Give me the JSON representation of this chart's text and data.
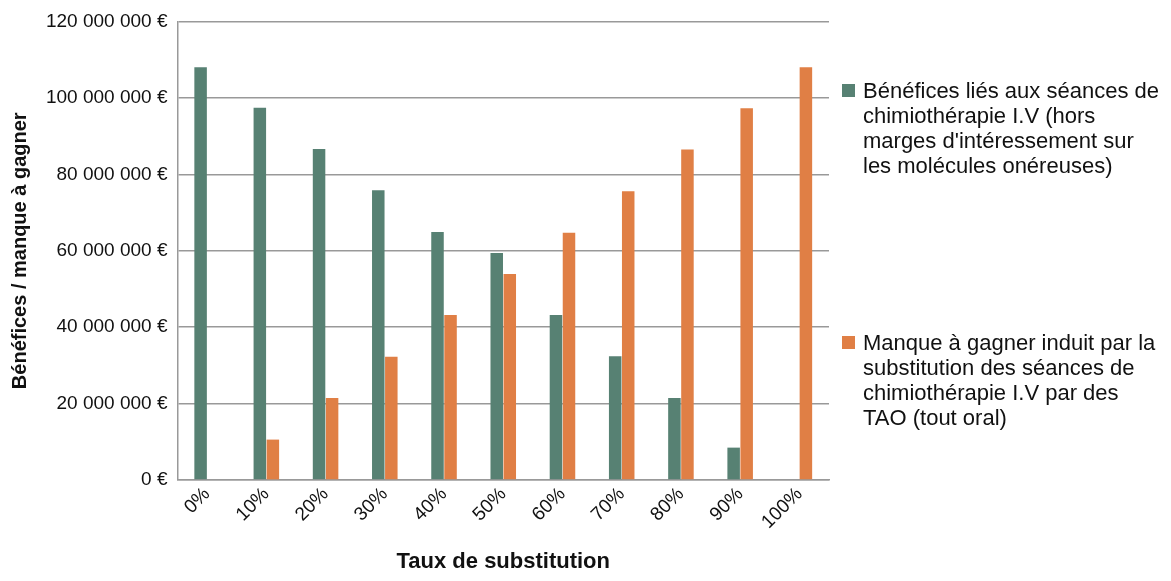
{
  "chart_data": {
    "type": "bar",
    "xlabel": "Taux de substitution",
    "ylabel": "Bénéfices / manque à gagner",
    "categories": [
      "0%",
      "10%",
      "20%",
      "30%",
      "40%",
      "50%",
      "60%",
      "70%",
      "80%",
      "90%",
      "100%"
    ],
    "series": [
      {
        "name": "Bénéfices liés aux séances de chimiothérapie I.V (hors marges d'intéressement sur les molécules onéreuses)",
        "color": "#578173",
        "values": [
          108000000,
          97400000,
          86600000,
          75800000,
          64900000,
          59400000,
          43200000,
          32400000,
          21500000,
          8500000,
          0
        ]
      },
      {
        "name": "Manque à gagner induit par la substitution des séances de chimiothérapie I.V par des TAO (tout oral)",
        "color": "#e07f45",
        "values": [
          0,
          10600000,
          21500000,
          32300000,
          43200000,
          53900000,
          64700000,
          75600000,
          86500000,
          97300000,
          108000000
        ]
      }
    ],
    "ylim": [
      0,
      120000000
    ],
    "yticks": [
      {
        "value": 0,
        "label": "0 €"
      },
      {
        "value": 20000000,
        "label": "20 000 000 €"
      },
      {
        "value": 40000000,
        "label": "40 000 000 €"
      },
      {
        "value": 60000000,
        "label": "60 000 000 €"
      },
      {
        "value": 80000000,
        "label": "80 000 000 €"
      },
      {
        "value": 100000000,
        "label": "100 000 000 €"
      },
      {
        "value": 120000000,
        "label": "120 000 000 €"
      }
    ],
    "grid": "y",
    "legend": "right"
  }
}
